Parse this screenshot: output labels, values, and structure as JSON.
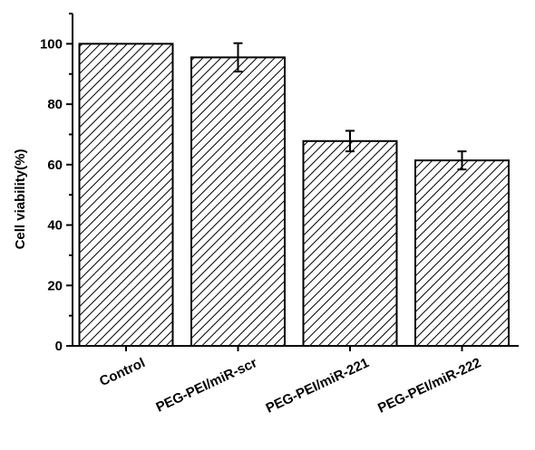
{
  "chart_data": {
    "type": "bar",
    "title": "",
    "xlabel": "",
    "ylabel": "Cell viability(%)",
    "ylim": [
      0,
      110
    ],
    "yticks": [
      0,
      20,
      40,
      60,
      80,
      100
    ],
    "grid": false,
    "legend": "none",
    "bar_fill": "diagonal-hatch",
    "colors": {
      "axis": "#000000",
      "bar_stroke": "#000000",
      "hatch": "#000000",
      "background": "#ffffff"
    },
    "categories": [
      "Control",
      "PEG-PEI/miR-scr",
      "PEG-PEI/miR-221",
      "PEG-PEI/miR-222"
    ],
    "series": [
      {
        "values": [
          100,
          95.5,
          67.8,
          61.4
        ],
        "errors": [
          0,
          4.7,
          3.4,
          3.0
        ]
      }
    ]
  }
}
